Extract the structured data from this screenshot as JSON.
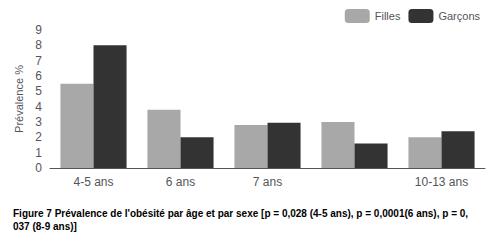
{
  "chart_data": {
    "type": "bar",
    "title": "Figure 7 Prévalence de l'obésité par âge et par sexe [p = 0,028 (4-5 ans), p = 0,0001(6 ans), p = 0,037 (8-9 ans)]",
    "y_label": "Prévalence %",
    "categories": [
      "4-5 ans",
      "6 ans",
      "7 ans",
      null,
      "10-13 ans"
    ],
    "series": [
      {
        "name": "Filles",
        "color": "#a8a8a8",
        "values": [
          5.5,
          3.8,
          2.8,
          3.0,
          2.0
        ]
      },
      {
        "name": "Garçons",
        "color": "#333333",
        "values": [
          8.0,
          2.0,
          2.95,
          1.6,
          2.4
        ]
      }
    ],
    "ylim": [
      0,
      9
    ],
    "yticks": [
      0,
      1,
      2,
      3,
      4,
      5,
      6,
      7,
      8,
      9
    ],
    "grid": false,
    "legend": "upper right"
  }
}
